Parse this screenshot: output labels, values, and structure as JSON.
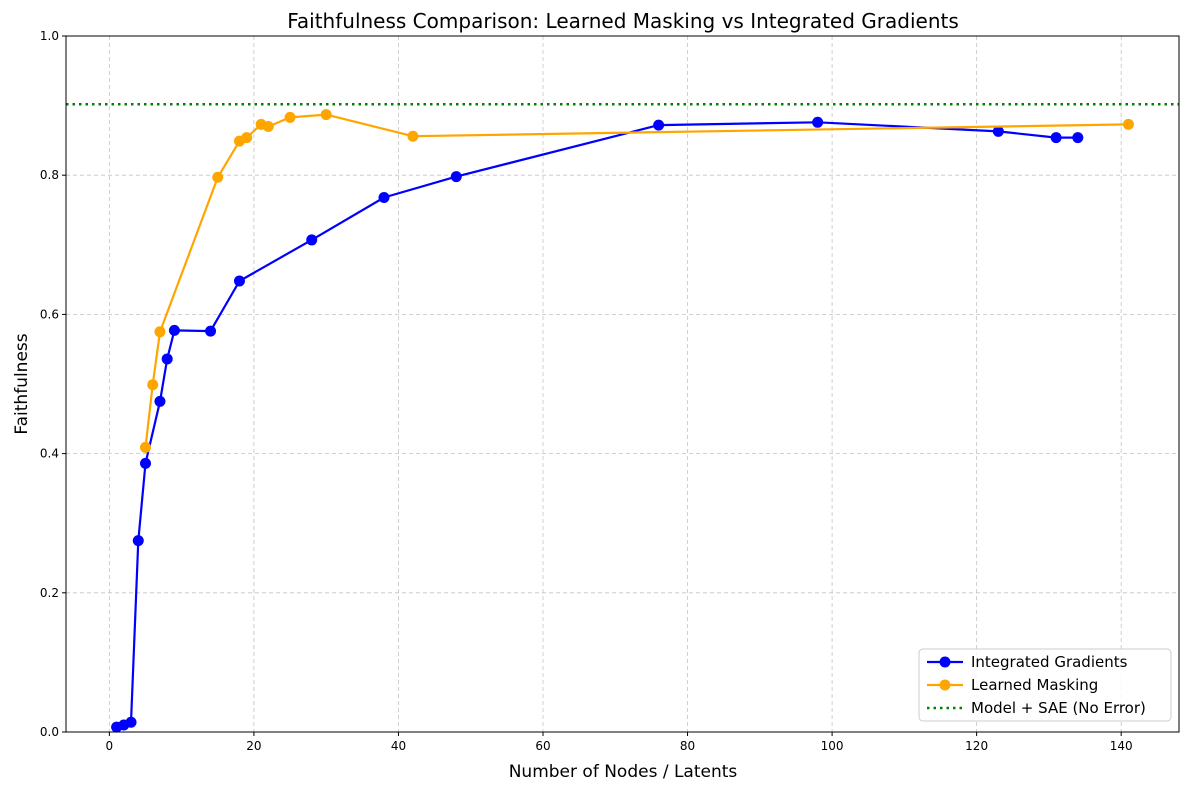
{
  "chart_data": {
    "type": "line",
    "title": "Faithfulness Comparison: Learned Masking vs Integrated Gradients",
    "xlabel": "Number of Nodes / Latents",
    "ylabel": "Faithfulness",
    "xlim": [
      -6,
      148
    ],
    "ylim": [
      0,
      1.0
    ],
    "xticks": [
      0,
      20,
      40,
      60,
      80,
      100,
      120,
      140
    ],
    "yticks": [
      0.0,
      0.2,
      0.4,
      0.6,
      0.8,
      1.0
    ],
    "xtick_labels": [
      "0",
      "20",
      "40",
      "60",
      "80",
      "100",
      "120",
      "140"
    ],
    "ytick_labels": [
      "0.0",
      "0.2",
      "0.4",
      "0.6",
      "0.8",
      "1.0"
    ],
    "grid": true,
    "legend_position": "bottom-right",
    "series": [
      {
        "name": "Integrated Gradients",
        "color": "#0000ff",
        "marker": "circle",
        "x": [
          1,
          2,
          3,
          4,
          5,
          7,
          8,
          9,
          14,
          18,
          28,
          38,
          48,
          76,
          98,
          123,
          131,
          134
        ],
        "y": [
          0.007,
          0.01,
          0.014,
          0.275,
          0.386,
          0.475,
          0.536,
          0.577,
          0.576,
          0.648,
          0.707,
          0.768,
          0.798,
          0.872,
          0.876,
          0.863,
          0.854,
          0.854
        ]
      },
      {
        "name": "Learned Masking",
        "color": "#ffa500",
        "marker": "circle",
        "x": [
          5,
          6,
          7,
          15,
          18,
          19,
          21,
          22,
          25,
          30,
          42,
          141
        ],
        "y": [
          0.409,
          0.499,
          0.575,
          0.797,
          0.849,
          0.854,
          0.873,
          0.87,
          0.883,
          0.887,
          0.856,
          0.873
        ]
      }
    ],
    "reference_lines": [
      {
        "name": "Model + SAE (No Error)",
        "color": "#008000",
        "style": "dotted",
        "y": 0.902
      }
    ]
  }
}
